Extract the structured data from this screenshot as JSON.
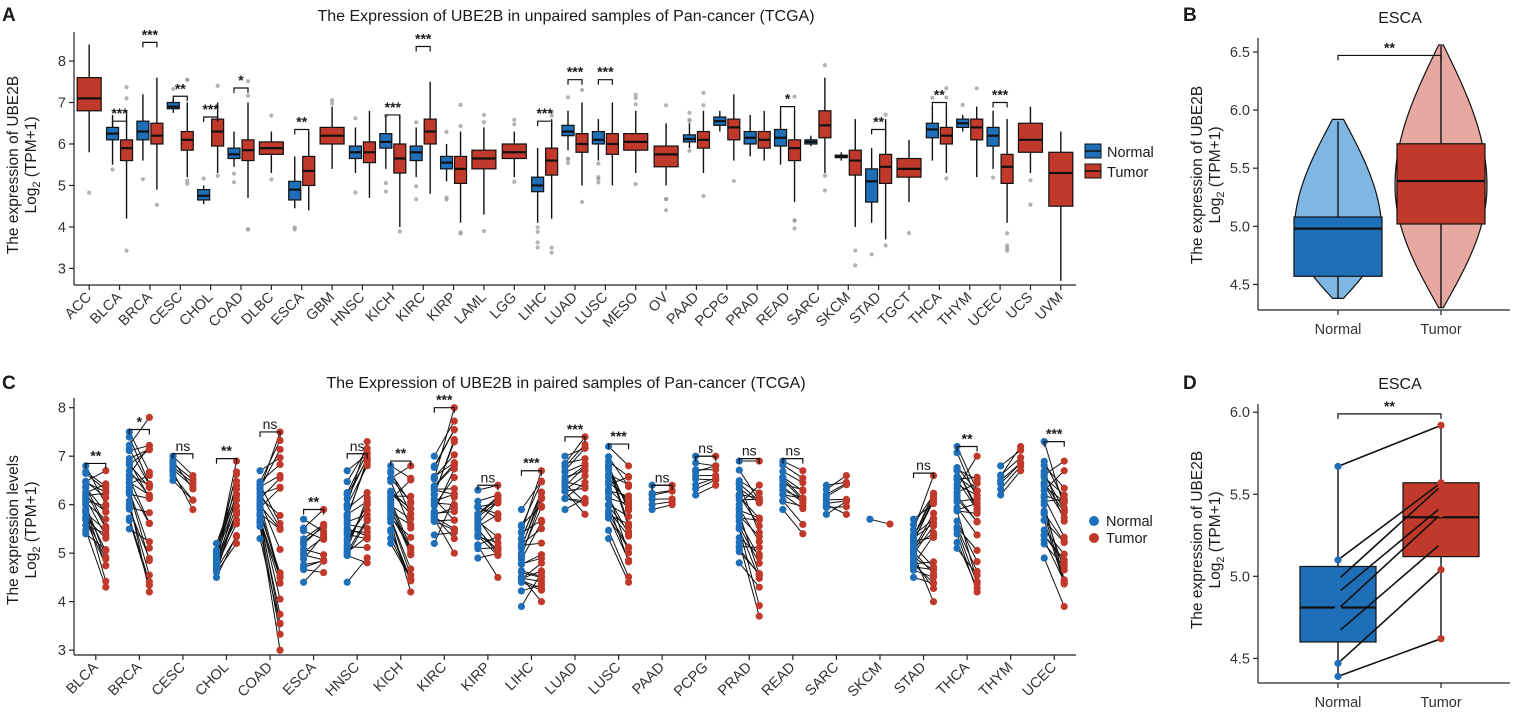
{
  "colors": {
    "normal": "#1f6fb8",
    "tumor": "#c0392b",
    "normal_light": "#7fb7e2",
    "tumor_light": "#e6a8a0",
    "outlier": "#999999"
  },
  "legend": {
    "normal": "Normal",
    "tumor": "Tumor"
  },
  "chart_data": [
    {
      "panel": "A",
      "type": "box",
      "title": "The Expression of UBE2B in unpaired samples of Pan-cancer (TCGA)",
      "ylabel_line1": "The expression of UBE2B",
      "ylabel_line2_pre": "Log",
      "ylabel_line2_sub": "2",
      "ylabel_line2_post": " (TPM+1)",
      "ylim": [
        2.6,
        8.7
      ],
      "yticks": [
        "3",
        "4",
        "5",
        "6",
        "7",
        "8"
      ],
      "categories": [
        "ACC",
        "BLCA",
        "BRCA",
        "CESC",
        "CHOL",
        "COAD",
        "DLBC",
        "ESCA",
        "GBM",
        "HNSC",
        "KICH",
        "KIRC",
        "KIRP",
        "LAML",
        "LGG",
        "LIHC",
        "LUAD",
        "LUSC",
        "MESO",
        "OV",
        "PAAD",
        "PCPG",
        "PRAD",
        "READ",
        "SARC",
        "SKCM",
        "STAD",
        "TGCT",
        "THCA",
        "THYM",
        "UCEC",
        "UCS",
        "UVM"
      ],
      "series": [
        {
          "name": "Normal",
          "boxes": {
            "BLCA": [
              5.5,
              6.1,
              6.25,
              6.4,
              6.7
            ],
            "BRCA": [
              5.6,
              6.1,
              6.3,
              6.55,
              7.2
            ],
            "CESC": [
              6.75,
              6.85,
              6.9,
              7.0,
              7.1
            ],
            "CHOL": [
              4.55,
              4.65,
              4.75,
              4.9,
              5.0
            ],
            "COAD": [
              5.45,
              5.65,
              5.75,
              5.9,
              6.3
            ],
            "ESCA": [
              4.45,
              4.65,
              4.9,
              5.1,
              5.7
            ],
            "HNSC": [
              5.3,
              5.65,
              5.8,
              5.95,
              6.4
            ],
            "KICH": [
              5.4,
              5.9,
              6.05,
              6.25,
              6.6
            ],
            "KIRC": [
              5.2,
              5.6,
              5.8,
              5.95,
              6.4
            ],
            "KIRP": [
              5.1,
              5.4,
              5.55,
              5.7,
              6.0
            ],
            "LIHC": [
              4.1,
              4.85,
              5.0,
              5.2,
              5.9
            ],
            "LUAD": [
              5.85,
              6.2,
              6.3,
              6.45,
              6.8
            ],
            "LUSC": [
              5.6,
              6.0,
              6.1,
              6.3,
              6.6
            ],
            "PAAD": [
              5.9,
              6.05,
              6.12,
              6.22,
              6.5
            ],
            "PCPG": [
              6.3,
              6.45,
              6.55,
              6.65,
              6.8
            ],
            "PRAD": [
              5.7,
              6.0,
              6.15,
              6.3,
              6.7
            ],
            "READ": [
              5.5,
              5.95,
              6.15,
              6.35,
              6.8
            ],
            "SARC": [
              5.95,
              6.0,
              6.05,
              6.1,
              6.2
            ],
            "SKCM": [
              5.6,
              5.67,
              5.7,
              5.73,
              5.8
            ],
            "STAD": [
              4.1,
              4.6,
              5.1,
              5.4,
              5.9
            ],
            "THCA": [
              5.6,
              6.15,
              6.35,
              6.5,
              6.9
            ],
            "THYM": [
              6.3,
              6.4,
              6.5,
              6.6,
              6.7
            ],
            "UCEC": [
              5.4,
              5.95,
              6.2,
              6.4,
              6.8
            ]
          }
        },
        {
          "name": "Tumor",
          "boxes": {
            "ACC": [
              5.8,
              6.8,
              7.1,
              7.6,
              8.4
            ],
            "BLCA": [
              4.2,
              5.6,
              5.9,
              6.1,
              6.8
            ],
            "BRCA": [
              4.9,
              6.0,
              6.2,
              6.5,
              7.6
            ],
            "CESC": [
              5.2,
              5.85,
              6.1,
              6.3,
              7.0
            ],
            "CHOL": [
              5.3,
              5.95,
              6.3,
              6.6,
              7.0
            ],
            "COAD": [
              4.7,
              5.6,
              5.85,
              6.1,
              7.0
            ],
            "DLBC": [
              5.3,
              5.75,
              5.9,
              6.05,
              6.3
            ],
            "ESCA": [
              4.4,
              5.0,
              5.35,
              5.7,
              6.3
            ],
            "GBM": [
              5.4,
              6.0,
              6.2,
              6.4,
              6.9
            ],
            "HNSC": [
              4.7,
              5.55,
              5.8,
              6.05,
              6.8
            ],
            "KICH": [
              4.0,
              5.3,
              5.65,
              6.0,
              6.7
            ],
            "KIRC": [
              4.8,
              6.0,
              6.3,
              6.6,
              7.5
            ],
            "KIRP": [
              4.1,
              5.05,
              5.4,
              5.7,
              6.3
            ],
            "LAML": [
              4.3,
              5.4,
              5.65,
              5.85,
              6.4
            ],
            "LGG": [
              5.2,
              5.65,
              5.8,
              6.0,
              6.3
            ],
            "LIHC": [
              4.2,
              5.25,
              5.6,
              5.9,
              6.6
            ],
            "LUAD": [
              5.0,
              5.8,
              6.0,
              6.25,
              7.0
            ],
            "LUSC": [
              5.0,
              5.75,
              6.0,
              6.25,
              7.0
            ],
            "MESO": [
              5.3,
              5.85,
              6.05,
              6.25,
              6.8
            ],
            "OV": [
              5.0,
              5.45,
              5.75,
              5.95,
              6.5
            ],
            "PAAD": [
              5.3,
              5.9,
              6.1,
              6.3,
              6.8
            ],
            "PCPG": [
              5.6,
              6.1,
              6.4,
              6.6,
              7.2
            ],
            "PRAD": [
              5.6,
              5.9,
              6.1,
              6.3,
              6.8
            ],
            "READ": [
              4.6,
              5.6,
              5.9,
              6.1,
              6.8
            ],
            "SARC": [
              5.3,
              6.15,
              6.45,
              6.8,
              7.6
            ],
            "SKCM": [
              4.0,
              5.25,
              5.6,
              5.85,
              6.6
            ],
            "STAD": [
              3.7,
              5.05,
              5.45,
              5.75,
              6.6
            ],
            "TGCT": [
              4.6,
              5.2,
              5.4,
              5.65,
              6.1
            ],
            "THCA": [
              5.3,
              6.0,
              6.2,
              6.4,
              6.9
            ],
            "THYM": [
              5.2,
              6.1,
              6.4,
              6.6,
              6.9
            ],
            "UCEC": [
              4.1,
              5.05,
              5.45,
              5.75,
              6.6
            ],
            "UCS": [
              5.3,
              5.8,
              6.1,
              6.5,
              6.9
            ],
            "UVM": [
              2.7,
              4.5,
              5.3,
              5.8,
              6.3
            ]
          }
        }
      ],
      "significance": [
        {
          "category": "BLCA",
          "label": "***",
          "y": 6.55
        },
        {
          "category": "BRCA",
          "label": "***",
          "y": 8.45
        },
        {
          "category": "CESC",
          "label": "**",
          "y": 7.15
        },
        {
          "category": "CHOL",
          "label": "***",
          "y": 6.65
        },
        {
          "category": "COAD",
          "label": "*",
          "y": 7.35
        },
        {
          "category": "ESCA",
          "label": "**",
          "y": 6.35
        },
        {
          "category": "KICH",
          "label": "***",
          "y": 6.7
        },
        {
          "category": "KIRC",
          "label": "***",
          "y": 8.35
        },
        {
          "category": "LIHC",
          "label": "***",
          "y": 6.55
        },
        {
          "category": "LUAD",
          "label": "***",
          "y": 7.55
        },
        {
          "category": "LUSC",
          "label": "***",
          "y": 7.55
        },
        {
          "category": "READ",
          "label": "*",
          "y": 6.9
        },
        {
          "category": "STAD",
          "label": "**",
          "y": 6.35
        },
        {
          "category": "THCA",
          "label": "**",
          "y": 7.0
        },
        {
          "category": "UCEC",
          "label": "***",
          "y": 7.0
        }
      ]
    },
    {
      "panel": "B",
      "type": "violin",
      "title": "ESCA",
      "ylabel_line1": "The expression of UBE2B",
      "ylabel_line2_pre": "Log",
      "ylabel_line2_sub": "2",
      "ylabel_line2_post": " (TPM+1)",
      "ylim": [
        4.28,
        6.62
      ],
      "yticks": [
        "4.5",
        "5.0",
        "5.5",
        "6.0",
        "6.5"
      ],
      "categories": [
        "Normal",
        "Tumor"
      ],
      "series": [
        {
          "name": "Normal",
          "box": [
            4.38,
            4.57,
            4.98,
            5.08,
            5.9
          ],
          "violin_range": [
            4.38,
            5.92
          ]
        },
        {
          "name": "Tumor",
          "box": [
            4.3,
            5.02,
            5.39,
            5.71,
            6.55
          ],
          "violin_range": [
            4.3,
            6.56
          ]
        }
      ],
      "significance": [
        {
          "label": "**",
          "y": 6.47
        }
      ]
    },
    {
      "panel": "C",
      "type": "paired_scatter",
      "title": "The Expression of UBE2B in paired samples of Pan-cancer (TCGA)",
      "ylabel_line1": "The expression levels",
      "ylabel_line2_pre": "Log",
      "ylabel_line2_sub": "2",
      "ylabel_line2_post": " (TPM+1)",
      "ylim": [
        2.9,
        8.2
      ],
      "yticks": [
        "3",
        "4",
        "5",
        "6",
        "7",
        "8"
      ],
      "categories": [
        "BLCA",
        "BRCA",
        "CESC",
        "CHOL",
        "COAD",
        "ESCA",
        "HNSC",
        "KICH",
        "KIRC",
        "KIRP",
        "LIHC",
        "LUAD",
        "LUSC",
        "PAAD",
        "PCPG",
        "PRAD",
        "READ",
        "SARC",
        "SKCM",
        "STAD",
        "THCA",
        "THYM",
        "UCEC"
      ],
      "ranges": {
        "BLCA": {
          "normal": [
            5.4,
            6.8
          ],
          "tumor": [
            4.3,
            6.7
          ]
        },
        "BRCA": {
          "normal": [
            5.5,
            7.5
          ],
          "tumor": [
            4.2,
            7.8
          ]
        },
        "CESC": {
          "normal": [
            6.5,
            7.0
          ],
          "tumor": [
            5.9,
            6.6
          ]
        },
        "CHOL": {
          "normal": [
            4.5,
            5.2
          ],
          "tumor": [
            5.2,
            6.9
          ]
        },
        "COAD": {
          "normal": [
            5.3,
            6.7
          ],
          "tumor": [
            3.0,
            7.5
          ]
        },
        "ESCA": {
          "normal": [
            4.4,
            5.7
          ],
          "tumor": [
            4.6,
            5.9
          ]
        },
        "HNSC": {
          "normal": [
            4.4,
            6.7
          ],
          "tumor": [
            4.8,
            7.3
          ]
        },
        "KICH": {
          "normal": [
            5.2,
            6.8
          ],
          "tumor": [
            4.2,
            6.8
          ]
        },
        "KIRC": {
          "normal": [
            5.2,
            7.0
          ],
          "tumor": [
            5.0,
            8.0
          ]
        },
        "KIRP": {
          "normal": [
            4.9,
            6.3
          ],
          "tumor": [
            4.5,
            6.4
          ]
        },
        "LIHC": {
          "normal": [
            3.9,
            5.9
          ],
          "tumor": [
            4.0,
            6.7
          ]
        },
        "LUAD": {
          "normal": [
            5.9,
            7.0
          ],
          "tumor": [
            5.8,
            7.4
          ]
        },
        "LUSC": {
          "normal": [
            5.3,
            7.2
          ],
          "tumor": [
            4.4,
            6.8
          ]
        },
        "PAAD": {
          "normal": [
            5.9,
            6.4
          ],
          "tumor": [
            6.0,
            6.4
          ]
        },
        "PCPG": {
          "normal": [
            6.2,
            7.0
          ],
          "tumor": [
            6.4,
            7.0
          ]
        },
        "PRAD": {
          "normal": [
            4.8,
            6.9
          ],
          "tumor": [
            3.7,
            6.9
          ]
        },
        "READ": {
          "normal": [
            5.9,
            6.9
          ],
          "tumor": [
            5.4,
            6.7
          ]
        },
        "SARC": {
          "normal": [
            5.8,
            6.4
          ],
          "tumor": [
            5.8,
            6.6
          ]
        },
        "SKCM": {
          "normal": [
            5.7,
            5.7
          ],
          "tumor": [
            5.6,
            5.6
          ]
        },
        "STAD": {
          "normal": [
            4.5,
            5.7
          ],
          "tumor": [
            4.0,
            6.6
          ]
        },
        "THCA": {
          "normal": [
            5.1,
            7.2
          ],
          "tumor": [
            4.2,
            7.0
          ]
        },
        "THYM": {
          "normal": [
            6.2,
            6.8
          ],
          "tumor": [
            6.7,
            7.2
          ]
        },
        "UCEC": {
          "normal": [
            4.9,
            7.3
          ],
          "tumor": [
            3.9,
            6.9
          ]
        }
      },
      "significance": [
        {
          "category": "BLCA",
          "label": "**",
          "y": 6.85
        },
        {
          "category": "BRCA",
          "label": "*",
          "y": 7.55
        },
        {
          "category": "CESC",
          "label": "ns",
          "y": 7.05
        },
        {
          "category": "CHOL",
          "label": "**",
          "y": 6.95
        },
        {
          "category": "COAD",
          "label": "ns",
          "y": 7.5
        },
        {
          "category": "ESCA",
          "label": "**",
          "y": 5.9
        },
        {
          "category": "HNSC",
          "label": "ns",
          "y": 7.05
        },
        {
          "category": "KICH",
          "label": "**",
          "y": 6.9
        },
        {
          "category": "KIRC",
          "label": "***",
          "y": 8.0
        },
        {
          "category": "KIRP",
          "label": "ns",
          "y": 6.4
        },
        {
          "category": "LIHC",
          "label": "***",
          "y": 6.7
        },
        {
          "category": "LUAD",
          "label": "***",
          "y": 7.4
        },
        {
          "category": "LUSC",
          "label": "***",
          "y": 7.25
        },
        {
          "category": "PAAD",
          "label": "ns",
          "y": 6.4
        },
        {
          "category": "PCPG",
          "label": "ns",
          "y": 7.0
        },
        {
          "category": "PRAD",
          "label": "ns",
          "y": 6.95
        },
        {
          "category": "READ",
          "label": "ns",
          "y": 6.95
        },
        {
          "category": "STAD",
          "label": "ns",
          "y": 6.65
        },
        {
          "category": "THCA",
          "label": "**",
          "y": 7.2
        },
        {
          "category": "UCEC",
          "label": "***",
          "y": 7.3
        }
      ]
    },
    {
      "panel": "D",
      "type": "paired_box",
      "title": "ESCA",
      "ylabel_line1": "The expression of UBE2B",
      "ylabel_line2_pre": "Log",
      "ylabel_line2_sub": "2",
      "ylabel_line2_post": " (TPM+1)",
      "ylim": [
        4.35,
        6.05
      ],
      "yticks": [
        "4.5",
        "5.0",
        "5.5",
        "6.0"
      ],
      "categories": [
        "Normal",
        "Tumor"
      ],
      "series": [
        {
          "name": "Normal",
          "box": [
            4.4,
            4.6,
            4.81,
            5.06,
            5.67
          ]
        },
        {
          "name": "Tumor",
          "box": [
            4.62,
            5.12,
            5.36,
            5.57,
            5.92
          ]
        }
      ],
      "pairs": [
        [
          5.67,
          5.92
        ],
        [
          5.1,
          5.57
        ],
        [
          4.98,
          5.55
        ],
        [
          4.9,
          5.42
        ],
        [
          4.8,
          5.38
        ],
        [
          4.66,
          5.2
        ],
        [
          4.47,
          5.04
        ],
        [
          4.39,
          4.62
        ]
      ],
      "significance": [
        {
          "label": "**",
          "y": 5.99
        }
      ]
    }
  ]
}
